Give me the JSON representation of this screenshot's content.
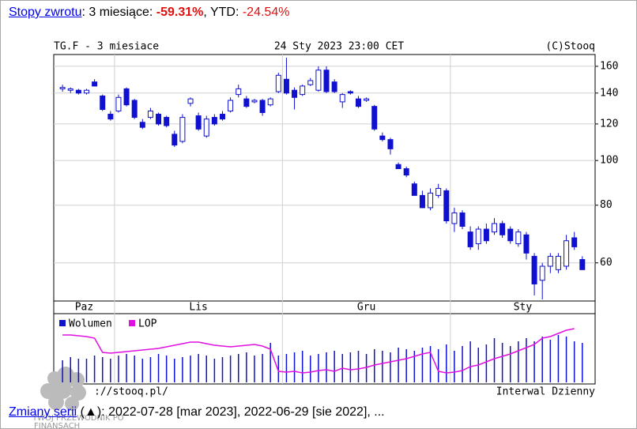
{
  "header": {
    "link": "Stopy zwrotu",
    "label1": ": 3 miesiące: ",
    "value1": "-59.31%",
    "label2": ", YTD: ",
    "value2": "-24.54%"
  },
  "footer": {
    "link": "Zmiany serii",
    "text": " (▲): 2022-07-28 [mar 2023], 2022-06-29 [sie 2022], ..."
  },
  "logo": {
    "line1": "TWÓJ PRZEWODNIK PO",
    "line2": "FINANSACH"
  },
  "chart_data": {
    "type": "candlestick",
    "title": "TG.F - 3 miesiace",
    "subtitle": "24 Sty 2023 23:00 CET",
    "credit": "(C)Stooq",
    "source": "://stooq.pl/",
    "interval": "Interwal Dzienny",
    "months": [
      "Paz",
      "Lis",
      "Gru",
      "Sty"
    ],
    "month_boundaries": [
      6.5,
      27.5,
      48.5
    ],
    "xlim": [
      -1.1,
      66.6
    ],
    "ylim": [
      49.6,
      169.7
    ],
    "yticks": [
      60,
      80,
      100,
      120,
      140,
      160
    ],
    "log_scale": true,
    "grid": true,
    "color": "#1010d0",
    "open": [
      143,
      142,
      142,
      140,
      148,
      138,
      126,
      128,
      143,
      135,
      121,
      124,
      126,
      124,
      114,
      110,
      133,
      125,
      113,
      124,
      126,
      128,
      139,
      136,
      134,
      135,
      132,
      141,
      150,
      142,
      139,
      146,
      142,
      157,
      148,
      134,
      141,
      136,
      135,
      131,
      113,
      111,
      98,
      96,
      89,
      84,
      79,
      84,
      86,
      73,
      77,
      70,
      66,
      71,
      70,
      73,
      71,
      66,
      69,
      62,
      55,
      59,
      58,
      59,
      68,
      61
    ],
    "high": [
      146,
      144,
      143,
      143,
      150,
      139,
      128,
      139,
      144,
      136,
      123,
      130,
      127,
      125,
      116,
      126,
      137,
      127,
      125,
      126,
      128,
      137,
      146,
      138,
      136,
      136,
      137,
      155,
      167,
      144,
      146,
      151,
      160,
      160,
      150,
      140,
      142,
      138,
      137,
      132,
      115,
      112,
      99,
      97,
      90,
      86,
      87,
      89,
      87,
      79,
      78,
      72,
      72,
      73,
      75,
      74,
      72,
      71,
      70,
      63,
      60,
      63,
      63,
      69,
      70,
      62
    ],
    "low": [
      141,
      140,
      139,
      139,
      145,
      128,
      122,
      127,
      131,
      123,
      117,
      123,
      119,
      118,
      107,
      109,
      131,
      116,
      112,
      119,
      122,
      127,
      137,
      130,
      133,
      125,
      131,
      140,
      139,
      129,
      138,
      145,
      141,
      140,
      140,
      130,
      139,
      130,
      134,
      116,
      110,
      103,
      96,
      92,
      84,
      79,
      78,
      83,
      73,
      70,
      71,
      64,
      64,
      66,
      69,
      68,
      66,
      65,
      61,
      51,
      50,
      57,
      57,
      58,
      64,
      58
    ],
    "close": [
      144,
      143,
      140,
      142,
      145,
      129,
      123,
      137,
      132,
      124,
      118,
      128,
      120,
      119,
      108,
      124,
      136,
      117,
      123,
      120,
      123,
      135,
      143,
      131,
      135,
      127,
      136,
      153,
      140,
      137,
      145,
      149,
      157,
      141,
      141,
      139,
      140,
      131,
      136,
      117,
      111,
      106,
      96,
      93,
      84,
      79,
      85,
      87,
      74,
      77,
      72,
      65,
      71,
      67,
      73,
      69,
      67,
      70,
      63,
      54,
      59,
      62,
      62,
      67,
      65,
      58
    ],
    "indicators": {
      "ylim": [
        0,
        85
      ],
      "series": [
        {
          "name": "Wolumen",
          "color": "#1010d0",
          "values": [
            28,
            32,
            30,
            30,
            34,
            32,
            30,
            34,
            36,
            34,
            30,
            32,
            36,
            34,
            30,
            32,
            34,
            36,
            34,
            30,
            32,
            34,
            36,
            38,
            34,
            36,
            50,
            34,
            36,
            38,
            40,
            34,
            36,
            38,
            40,
            36,
            38,
            40,
            36,
            42,
            40,
            38,
            44,
            42,
            40,
            44,
            46,
            42,
            48,
            40,
            46,
            52,
            44,
            48,
            56,
            50,
            46,
            52,
            56,
            52,
            58,
            54,
            60,
            58,
            52,
            50
          ]
        },
        {
          "name": "LOP",
          "color": "#e010e0",
          "values": [
            60,
            60,
            59,
            58,
            56,
            38,
            37,
            38,
            39,
            40,
            41,
            42,
            43,
            45,
            47,
            49,
            51,
            51,
            49,
            47,
            46,
            45,
            46,
            47,
            48,
            46,
            42,
            14,
            13,
            14,
            12,
            13,
            15,
            16,
            14,
            18,
            16,
            17,
            19,
            22,
            24,
            26,
            28,
            30,
            33,
            36,
            38,
            14,
            12,
            13,
            15,
            20,
            22,
            26,
            30,
            33,
            36,
            40,
            44,
            48,
            56,
            58,
            62,
            66,
            68,
            null
          ]
        }
      ]
    }
  }
}
